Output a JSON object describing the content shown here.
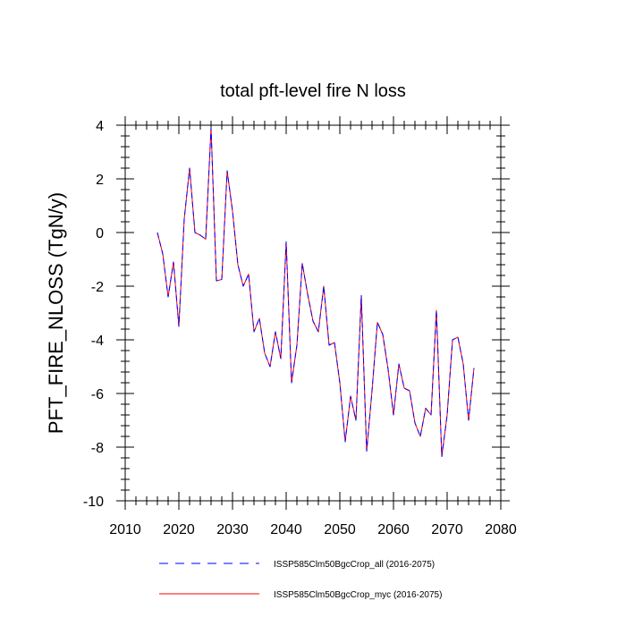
{
  "chart_data": {
    "type": "line",
    "title": "total pft-level fire N loss",
    "xlabel": "",
    "ylabel": "PFT_FIRE_NLOSS  (TgN/y)",
    "xlim": [
      2010,
      2080
    ],
    "ylim": [
      -10,
      4
    ],
    "xticks": [
      2010,
      2020,
      2030,
      2040,
      2050,
      2060,
      2070,
      2080
    ],
    "yticks": [
      4,
      2,
      0,
      -2,
      -4,
      -6,
      -8,
      -10
    ],
    "grid": false,
    "legend_position": "bottom",
    "x": [
      2016,
      2017,
      2018,
      2019,
      2020,
      2021,
      2022,
      2023,
      2024,
      2025,
      2026,
      2027,
      2028,
      2029,
      2030,
      2031,
      2032,
      2033,
      2034,
      2035,
      2036,
      2037,
      2038,
      2039,
      2040,
      2041,
      2042,
      2043,
      2044,
      2045,
      2046,
      2047,
      2048,
      2049,
      2050,
      2051,
      2052,
      2053,
      2054,
      2055,
      2056,
      2057,
      2058,
      2059,
      2060,
      2061,
      2062,
      2063,
      2064,
      2065,
      2066,
      2067,
      2068,
      2069,
      2070,
      2071,
      2072,
      2073,
      2074,
      2075
    ],
    "series": [
      {
        "name": "ISSP585Clm50BgcCrop_all (2016-2075)",
        "color": "#0000ff",
        "dash": "dashed",
        "values": [
          0.0,
          -0.8,
          -2.4,
          -1.1,
          -3.5,
          0.5,
          2.4,
          0.0,
          -0.1,
          -0.25,
          3.9,
          -1.8,
          -1.75,
          2.3,
          0.8,
          -1.2,
          -2.0,
          -1.55,
          -3.7,
          -3.2,
          -4.5,
          -5.0,
          -3.7,
          -4.7,
          -0.35,
          -5.6,
          -4.2,
          -1.15,
          -2.3,
          -3.3,
          -3.7,
          -2.0,
          -4.2,
          -4.1,
          -5.6,
          -7.8,
          -6.1,
          -7.0,
          -2.35,
          -8.15,
          -5.9,
          -3.35,
          -3.8,
          -5.1,
          -6.8,
          -4.9,
          -5.8,
          -5.9,
          -7.1,
          -7.6,
          -6.55,
          -6.8,
          -2.9,
          -8.35,
          -6.8,
          -4.0,
          -3.9,
          -4.9,
          -7.0,
          -5.05
        ]
      },
      {
        "name": "ISSP585Clm50BgcCrop_myc (2016-2075)",
        "color": "#ff0000",
        "dash": "solid",
        "values": [
          0.0,
          -0.8,
          -2.4,
          -1.1,
          -3.5,
          0.5,
          2.4,
          0.0,
          -0.1,
          -0.25,
          3.9,
          -1.8,
          -1.75,
          2.3,
          0.8,
          -1.2,
          -2.0,
          -1.55,
          -3.7,
          -3.2,
          -4.5,
          -5.0,
          -3.7,
          -4.7,
          -0.35,
          -5.6,
          -4.2,
          -1.15,
          -2.3,
          -3.3,
          -3.7,
          -2.0,
          -4.2,
          -4.1,
          -5.6,
          -7.8,
          -6.1,
          -7.0,
          -2.35,
          -8.15,
          -5.9,
          -3.35,
          -3.8,
          -5.1,
          -6.8,
          -4.9,
          -5.8,
          -5.9,
          -7.1,
          -7.6,
          -6.55,
          -6.8,
          -2.9,
          -8.35,
          -6.8,
          -4.0,
          -3.9,
          -4.9,
          -7.0,
          -5.05
        ]
      }
    ]
  }
}
